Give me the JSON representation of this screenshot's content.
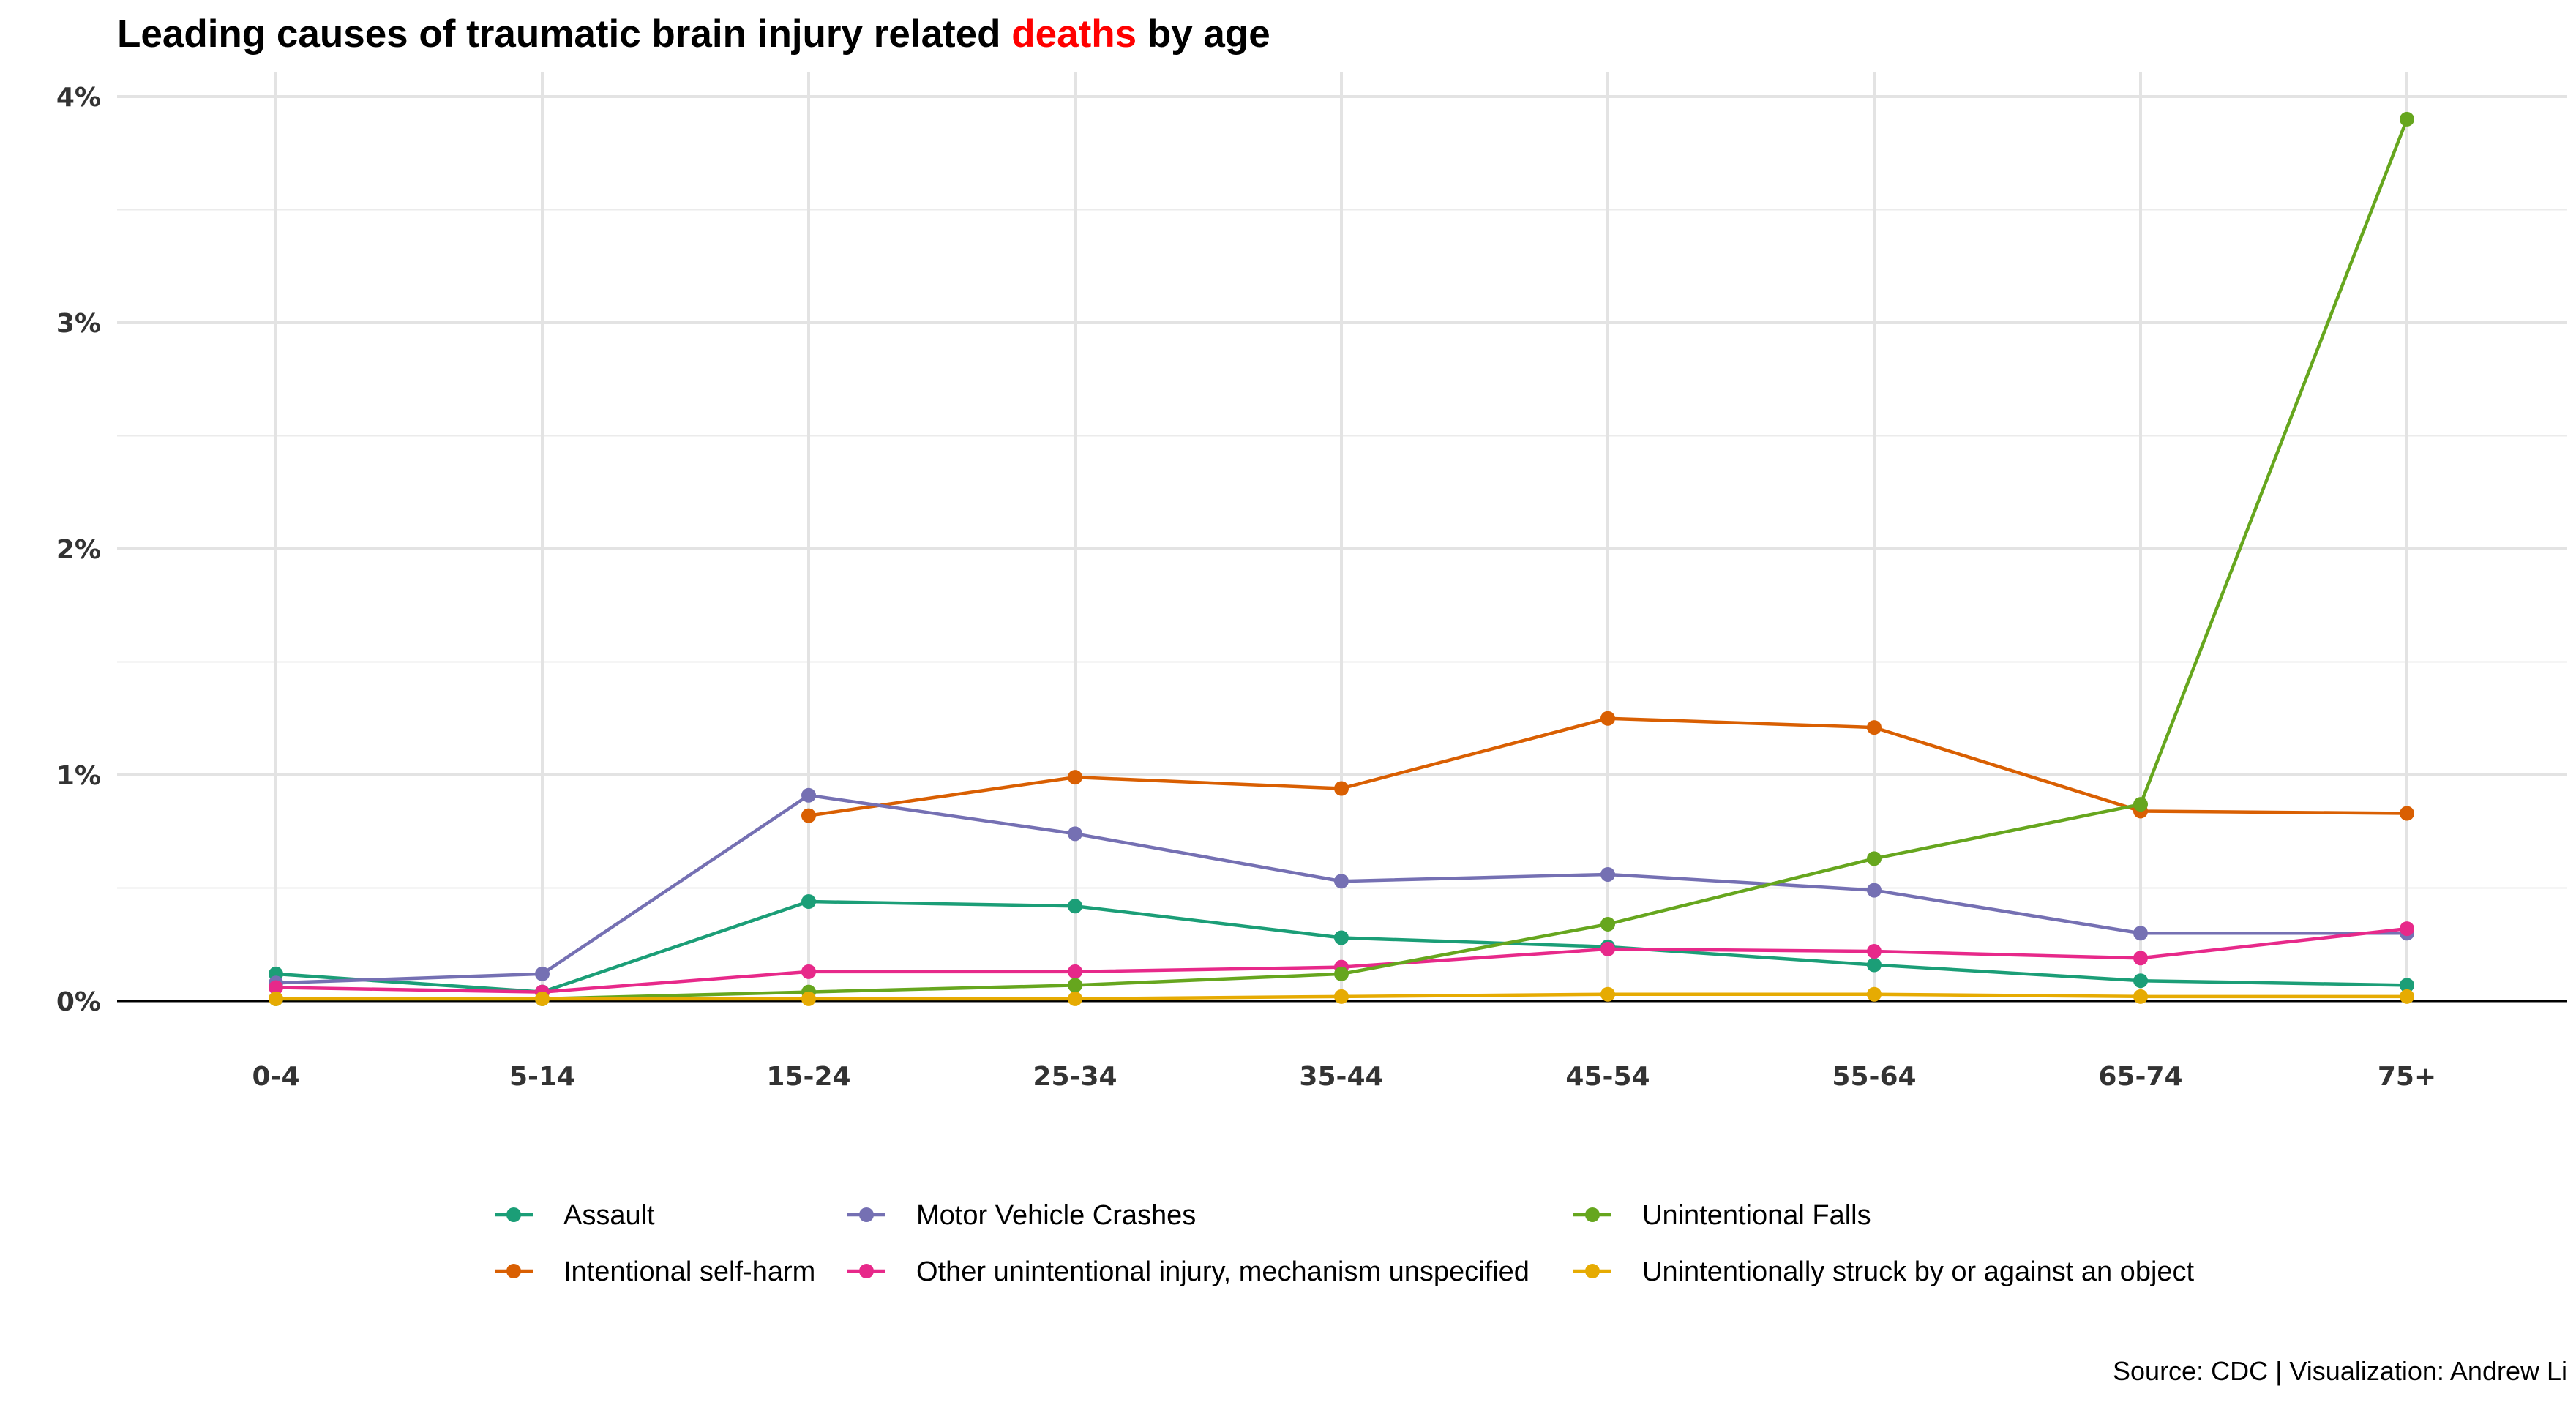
{
  "title": {
    "prefix": "Leading causes of traumatic brain injury related ",
    "highlight": "deaths",
    "suffix": " by age",
    "highlight_color": "#FF0000"
  },
  "caption": "Source: CDC | Visualization: Andrew Li",
  "chart_data": {
    "type": "line",
    "categories": [
      "0-4",
      "5-14",
      "15-24",
      "25-34",
      "35-44",
      "45-54",
      "55-64",
      "65-74",
      "75+"
    ],
    "ylim": [
      0,
      4
    ],
    "y_ticks": [
      0,
      1,
      2,
      3,
      4
    ],
    "y_tick_labels": [
      "0%",
      "1%",
      "2%",
      "3%",
      "4%"
    ],
    "y_unit": "percent",
    "grid": true,
    "legend_position": "bottom",
    "series": [
      {
        "name": "Assault",
        "color": "#1B9E77",
        "values": [
          0.12,
          0.04,
          0.44,
          0.42,
          0.28,
          0.24,
          0.16,
          0.09,
          0.07
        ]
      },
      {
        "name": "Intentional self-harm",
        "color": "#D95F02",
        "values": [
          null,
          null,
          0.82,
          0.99,
          0.94,
          1.25,
          1.21,
          0.84,
          0.83
        ]
      },
      {
        "name": "Motor Vehicle Crashes",
        "color": "#7570B3",
        "values": [
          0.08,
          0.12,
          0.91,
          0.74,
          0.53,
          0.56,
          0.49,
          0.3,
          0.3
        ]
      },
      {
        "name": "Other unintentional injury, mechanism unspecified",
        "color": "#E7298A",
        "values": [
          0.06,
          0.04,
          0.13,
          0.13,
          0.15,
          0.23,
          0.22,
          0.19,
          0.32
        ]
      },
      {
        "name": "Unintentional Falls",
        "color": "#66A61E",
        "values": [
          0.01,
          0.01,
          0.04,
          0.07,
          0.12,
          0.34,
          0.63,
          0.87,
          3.9
        ]
      },
      {
        "name": "Unintentionally struck by or against an object",
        "color": "#E6AB02",
        "values": [
          0.01,
          0.01,
          0.01,
          0.01,
          0.02,
          0.03,
          0.03,
          0.02,
          0.02
        ]
      }
    ],
    "legend_order": [
      0,
      2,
      4,
      1,
      3,
      5
    ]
  }
}
